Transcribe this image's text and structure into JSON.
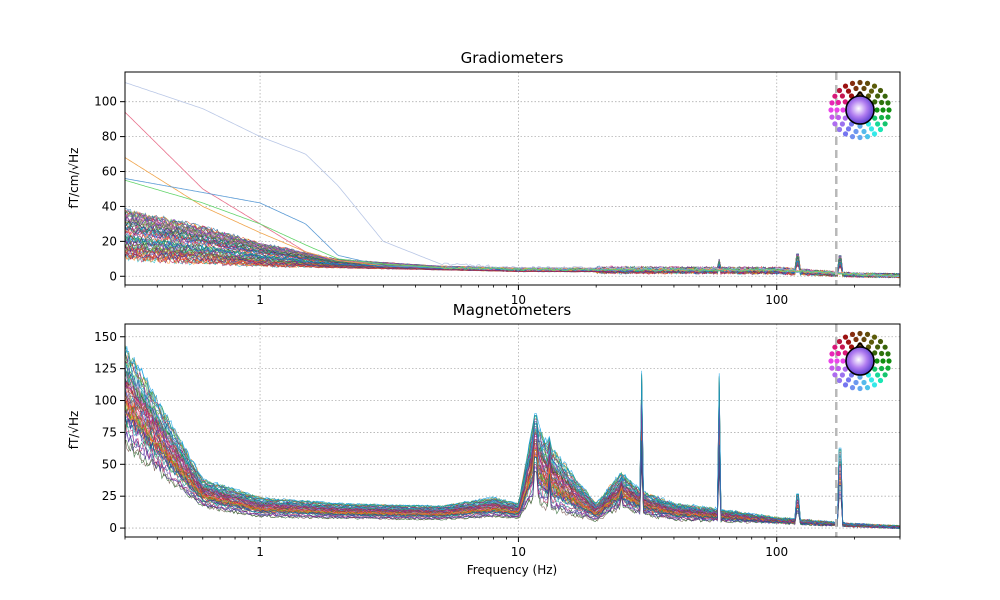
{
  "chart_data": [
    {
      "type": "line",
      "title": "Gradiometers",
      "xlabel": "",
      "ylabel": "fT/cm/√Hz",
      "xscale": "log",
      "xlim": [
        0.3,
        300
      ],
      "ylim": [
        -5,
        117
      ],
      "x_ticks": [
        "1",
        "10",
        "100"
      ],
      "y_ticks": [
        "0",
        "20",
        "40",
        "60",
        "80",
        "100"
      ],
      "grid": true,
      "cutoff_line_x": 170,
      "notable_traces": [
        {
          "x": [
            0.3,
            0.6,
            1.0,
            1.5,
            2.0,
            3.0,
            5.0,
            10,
            100,
            250,
            300
          ],
          "y": [
            111,
            96,
            80,
            70,
            52,
            20,
            7,
            5,
            4,
            0.5,
            0.3
          ],
          "color": "#b9c7e6"
        },
        {
          "x": [
            0.3,
            0.6,
            1.0,
            1.5,
            2.0,
            3.0,
            5.0,
            10,
            100,
            250,
            300
          ],
          "y": [
            94,
            50,
            30,
            14,
            9,
            7,
            5,
            4,
            3.5,
            0.5,
            0.3
          ],
          "color": "#e8718c"
        },
        {
          "x": [
            0.3,
            0.6,
            1.0,
            1.5,
            2.0,
            3.0,
            5.0,
            10,
            100,
            250,
            300
          ],
          "y": [
            68,
            40,
            25,
            14,
            9,
            6,
            5,
            4,
            3.5,
            0.5,
            0.3
          ],
          "color": "#f0a54d"
        },
        {
          "x": [
            0.3,
            0.6,
            1.0,
            1.5,
            2.0,
            3.0,
            5.0,
            10,
            100,
            250,
            300
          ],
          "y": [
            56,
            48,
            42,
            30,
            12,
            6,
            5,
            4,
            3.5,
            0.5,
            0.3
          ],
          "color": "#5b9bd5"
        },
        {
          "x": [
            0.3,
            0.6,
            1.0,
            1.5,
            2.0,
            3.0,
            5.0,
            10,
            100,
            250,
            300
          ],
          "y": [
            55,
            42,
            30,
            18,
            10,
            7,
            5,
            4,
            3.5,
            0.5,
            0.3
          ],
          "color": "#62d46a"
        }
      ],
      "bundle_range": {
        "x": [
          0.3,
          0.6,
          1.0,
          2.0,
          5.0,
          10,
          100,
          200,
          300
        ],
        "y_low": [
          8,
          6,
          5,
          4.5,
          3.5,
          2.5,
          2,
          0.5,
          0.2
        ],
        "y_high": [
          40,
          30,
          20,
          10,
          6,
          5,
          4.5,
          1,
          0.5
        ]
      },
      "peaks": [
        {
          "x": 120,
          "y": 13
        },
        {
          "x": 175,
          "y": 12
        },
        {
          "x": 60,
          "y": 10
        }
      ]
    },
    {
      "type": "line",
      "title": "Magnetometers",
      "xlabel": "Frequency (Hz)",
      "ylabel": "fT/√Hz",
      "xscale": "log",
      "xlim": [
        0.3,
        300
      ],
      "ylim": [
        -7,
        160
      ],
      "x_ticks": [
        "1",
        "10",
        "100"
      ],
      "y_ticks": [
        "0",
        "25",
        "50",
        "75",
        "100",
        "125",
        "150"
      ],
      "grid": true,
      "cutoff_line_x": 170,
      "bundle_range": {
        "x": [
          0.3,
          0.6,
          1.0,
          2.0,
          5.0,
          8.0,
          10,
          11.5,
          13,
          20,
          25,
          30,
          40,
          60,
          100,
          200,
          300
        ],
        "y_low": [
          60,
          15,
          8,
          7,
          6,
          8,
          7,
          20,
          12,
          5,
          15,
          10,
          6,
          5,
          4,
          1.5,
          0.5
        ],
        "y_high": [
          150,
          40,
          25,
          20,
          18,
          25,
          20,
          90,
          70,
          20,
          45,
          30,
          20,
          15,
          8,
          3,
          1
        ]
      },
      "peaks": [
        {
          "x": 30,
          "y": 124
        },
        {
          "x": 60,
          "y": 122
        },
        {
          "x": 175,
          "y": 63
        },
        {
          "x": 13.2,
          "y": 72
        },
        {
          "x": 11.7,
          "y": 90
        },
        {
          "x": 25,
          "y": 43
        },
        {
          "x": 120,
          "y": 27
        }
      ]
    }
  ]
}
